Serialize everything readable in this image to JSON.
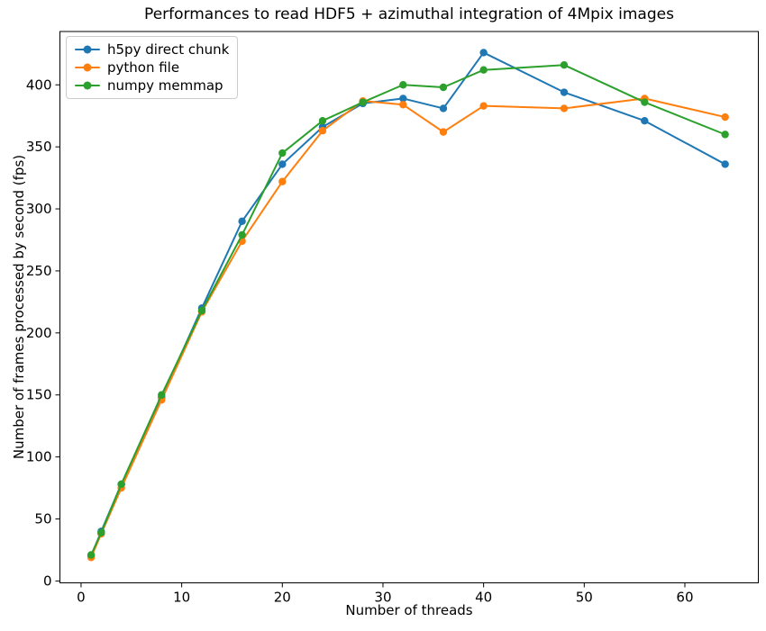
{
  "figure": {
    "background": "#ffffff",
    "spine_color": "#000000"
  },
  "chart_data": {
    "type": "line",
    "title": "Performances to read HDF5 + azimuthal integration of 4Mpix images",
    "xlabel": "Number of threads",
    "ylabel": "Number of frames processed by second (fps)",
    "x": [
      1,
      2,
      4,
      8,
      12,
      16,
      20,
      24,
      28,
      32,
      36,
      40,
      48,
      56,
      64
    ],
    "series": [
      {
        "name": "h5py direct chunk",
        "color": "#1f77b4",
        "values": [
          20,
          40,
          78,
          148,
          220,
          290,
          336,
          366,
          385,
          389,
          381,
          426,
          394,
          371,
          336
        ]
      },
      {
        "name": "python file",
        "color": "#ff7f0e",
        "values": [
          19,
          38,
          75,
          146,
          217,
          274,
          322,
          363,
          387,
          384,
          362,
          383,
          381,
          389,
          374
        ]
      },
      {
        "name": "numpy memmap",
        "color": "#2ca02c",
        "values": [
          21,
          39,
          78,
          150,
          218,
          279,
          345,
          371,
          386,
          400,
          398,
          412,
          416,
          386,
          360
        ]
      }
    ],
    "xlim": [
      -2.1,
      67.3
    ],
    "ylim": [
      -1.5,
      443
    ],
    "xticks": [
      0,
      10,
      20,
      30,
      40,
      50,
      60
    ],
    "yticks": [
      0,
      50,
      100,
      150,
      200,
      250,
      300,
      350,
      400
    ],
    "grid": false,
    "marker": "o",
    "legend_position": "upper left"
  }
}
